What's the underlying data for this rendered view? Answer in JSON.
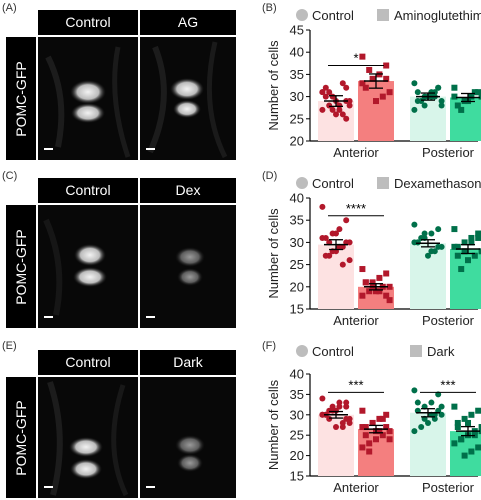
{
  "rows": [
    {
      "micro_letter": "(A)",
      "chart_letter": "(B)",
      "ylabel_box": "POMC-GFP",
      "headers": [
        "Control",
        "AG"
      ],
      "legend": [
        "Control",
        "Aminoglutethimide"
      ],
      "legend_wide": false
    },
    {
      "micro_letter": "(C)",
      "chart_letter": "(D)",
      "ylabel_box": "POMC-GFP",
      "headers": [
        "Control",
        "Dex"
      ],
      "legend": [
        "Control",
        "Dexamethasone"
      ],
      "legend_wide": false
    },
    {
      "micro_letter": "(E)",
      "chart_letter": "(F)",
      "ylabel_box": "POMC-GFP",
      "headers": [
        "Control",
        "Dark"
      ],
      "legend": [
        "Control",
        "Dark"
      ],
      "legend_wide": true
    }
  ],
  "chart_data": [
    {
      "type": "bar",
      "ylabel": "Number of cells",
      "ylim": [
        20,
        45
      ],
      "yticks": [
        20,
        25,
        30,
        35,
        40,
        45
      ],
      "groups": [
        "Anterior",
        "Posterior"
      ],
      "colors": {
        "control_ant": "#fde2e2",
        "treat_ant": "#f47f7f",
        "dot_ant": "#b2182b",
        "control_post": "#d8f5ea",
        "treat_post": "#3fdc9f",
        "dot_post": "#00704a"
      },
      "bars": [
        {
          "group": "Anterior",
          "series": "Control",
          "mean": 29,
          "sem": 1.2,
          "points": [
            31,
            32,
            28,
            27,
            30,
            29,
            33,
            26,
            28,
            31,
            29,
            27,
            30,
            32,
            28,
            26,
            29,
            31,
            27,
            25
          ]
        },
        {
          "group": "Anterior",
          "series": "Aminoglutethimide",
          "mean": 33.5,
          "sem": 1.6,
          "points": [
            39,
            37,
            35,
            34,
            32,
            31,
            30,
            29,
            36,
            33,
            34
          ]
        },
        {
          "group": "Posterior",
          "series": "Control",
          "mean": 30,
          "sem": 0.8,
          "points": [
            33,
            32,
            31,
            30,
            29,
            28,
            31,
            30,
            29,
            27,
            32,
            30,
            28,
            31,
            29,
            30
          ]
        },
        {
          "group": "Posterior",
          "series": "Aminoglutethimide",
          "mean": 29.8,
          "sem": 0.9,
          "points": [
            32,
            31,
            30,
            29,
            28,
            30,
            31,
            29,
            27,
            30
          ]
        }
      ],
      "significance": [
        {
          "group": "Anterior",
          "label": "*",
          "y": 37
        }
      ]
    },
    {
      "type": "bar",
      "ylabel": "Number of cells",
      "ylim": [
        15,
        40
      ],
      "yticks": [
        15,
        20,
        25,
        30,
        35,
        40
      ],
      "groups": [
        "Anterior",
        "Posterior"
      ],
      "colors": {
        "control_ant": "#fde2e2",
        "treat_ant": "#f47f7f",
        "dot_ant": "#b2182b",
        "control_post": "#d8f5ea",
        "treat_post": "#3fdc9f",
        "dot_post": "#00704a"
      },
      "bars": [
        {
          "group": "Anterior",
          "series": "Control",
          "mean": 29.5,
          "sem": 1.1,
          "points": [
            38,
            35,
            33,
            32,
            31,
            30,
            29,
            28,
            27,
            31,
            30,
            29,
            28,
            27,
            26,
            25,
            32,
            30
          ]
        },
        {
          "group": "Anterior",
          "series": "Dexamethasone",
          "mean": 20,
          "sem": 0.7,
          "points": [
            24,
            23,
            22,
            21,
            21,
            20,
            20,
            19,
            19,
            18,
            18,
            19,
            20,
            21,
            17
          ]
        },
        {
          "group": "Posterior",
          "series": "Control",
          "mean": 29.8,
          "sem": 0.8,
          "points": [
            34,
            33,
            32,
            31,
            30,
            29,
            28,
            27,
            31,
            30,
            29,
            28,
            32,
            30
          ]
        },
        {
          "group": "Posterior",
          "series": "Dexamethasone",
          "mean": 28.5,
          "sem": 1.0,
          "points": [
            33,
            32,
            31,
            30,
            29,
            28,
            27,
            26,
            24,
            29,
            31,
            30,
            28,
            27
          ]
        }
      ],
      "significance": [
        {
          "group": "Anterior",
          "label": "****",
          "y": 36
        }
      ]
    },
    {
      "type": "bar",
      "ylabel": "Number of cells",
      "ylim": [
        15,
        40
      ],
      "yticks": [
        15,
        20,
        25,
        30,
        35,
        40
      ],
      "groups": [
        "Anterior",
        "Posterior"
      ],
      "colors": {
        "control_ant": "#fde2e2",
        "treat_ant": "#f47f7f",
        "dot_ant": "#b2182b",
        "control_post": "#d8f5ea",
        "treat_post": "#3fdc9f",
        "dot_post": "#00704a"
      },
      "bars": [
        {
          "group": "Anterior",
          "series": "Control",
          "mean": 30,
          "sem": 0.8,
          "points": [
            34,
            33,
            32,
            31,
            30,
            29,
            28,
            27,
            31,
            30,
            29,
            33,
            32,
            30,
            28,
            27,
            31,
            29,
            30,
            32
          ]
        },
        {
          "group": "Anterior",
          "series": "Dark",
          "mean": 26.5,
          "sem": 0.9,
          "points": [
            31,
            30,
            29,
            28,
            27,
            26,
            25,
            24,
            23,
            22,
            27,
            26,
            28,
            25,
            24,
            29,
            26,
            21,
            27
          ]
        },
        {
          "group": "Posterior",
          "series": "Control",
          "mean": 30.5,
          "sem": 1.0,
          "points": [
            36,
            35,
            33,
            32,
            31,
            30,
            29,
            28,
            27,
            26,
            31,
            30,
            29,
            33,
            32,
            30
          ]
        },
        {
          "group": "Posterior",
          "series": "Dark",
          "mean": 26,
          "sem": 1.1,
          "points": [
            32,
            31,
            30,
            29,
            28,
            27,
            26,
            25,
            24,
            23,
            22,
            21,
            20,
            27,
            26,
            25,
            28,
            24
          ]
        }
      ],
      "significance": [
        {
          "group": "Anterior",
          "label": "***",
          "y": 35.5
        },
        {
          "group": "Posterior",
          "label": "***",
          "y": 35.5
        }
      ]
    }
  ]
}
